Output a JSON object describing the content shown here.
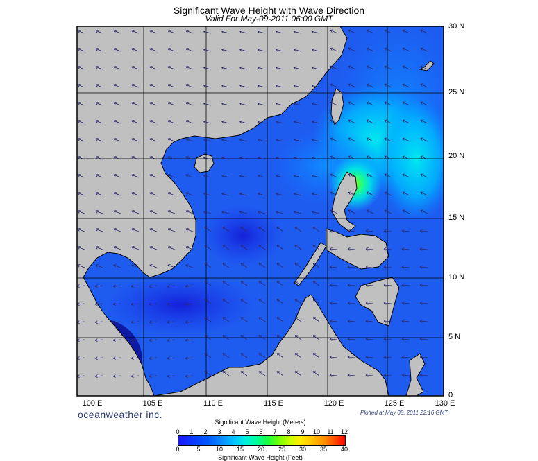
{
  "title": "Significant Wave Height with Wave Direction",
  "subtitle": "Valid For May-09-2011 06:00 GMT",
  "lat_labels": [
    "30 N",
    "25 N",
    "20 N",
    "15 N",
    "10 N",
    "5 N",
    "0"
  ],
  "lon_labels": [
    "100 E",
    "105 E",
    "110 E",
    "115 E",
    "120 E",
    "125 E",
    "130 E"
  ],
  "brand": "oceanweather inc.",
  "plotted": "Plotted at May 08, 2011 22:16 GMT",
  "colorbar": {
    "title_m": "Significant Wave Height (Meters)",
    "title_ft": "Significant Wave Height (Feet)",
    "ticks_m": [
      "0",
      "1",
      "2",
      "3",
      "4",
      "5",
      "6",
      "7",
      "8",
      "9",
      "10",
      "11",
      "12"
    ],
    "ticks_ft": [
      "0",
      "5",
      "10",
      "15",
      "20",
      "25",
      "30",
      "35",
      "40"
    ]
  },
  "colors": {
    "land": "#c0c0c0",
    "ocean": "#1e5cf0",
    "graticule": "#000000",
    "arrow": "#2a2a6a",
    "peak": "#44ff22"
  }
}
